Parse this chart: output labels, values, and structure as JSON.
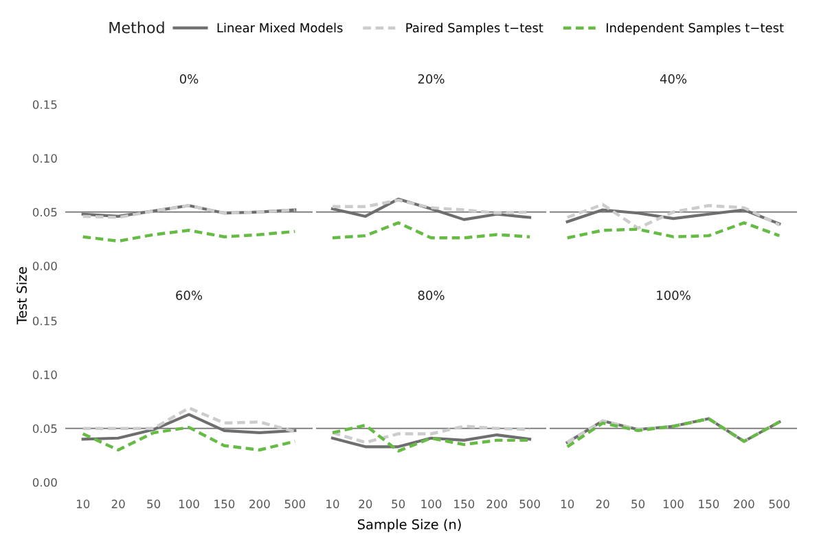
{
  "chart_data": [
    {
      "type": "line",
      "title": "0%",
      "ylabel": "Test Size",
      "legend_title": "Method",
      "legend": "top",
      "tick_labels": "y",
      "categories": [
        "10",
        "20",
        "50",
        "100",
        "150",
        "200",
        "500"
      ],
      "ylim": [
        0,
        0.15
      ],
      "yticks": [
        {
          "value": 0,
          "label": "0.00"
        },
        {
          "value": 0.05,
          "label": "0.05"
        },
        {
          "value": 0.1,
          "label": "0.10"
        },
        {
          "value": 0.15,
          "label": "0.15"
        }
      ],
      "ref_lines": [
        {
          "axis": "y",
          "value": 0.05,
          "color": "#707070"
        }
      ],
      "series": [
        {
          "name": "Linear Mixed Models",
          "color": "#6e6e6e",
          "line_style": "solid",
          "values": [
            0.048,
            0.046,
            0.051,
            0.056,
            0.049,
            0.05,
            0.052
          ]
        },
        {
          "name": "Paired Samples t−test",
          "color": "#cccccc",
          "line_style": "dashed",
          "values": [
            0.046,
            0.045,
            0.051,
            0.056,
            0.049,
            0.05,
            0.052
          ]
        },
        {
          "name": "Independent Samples t−test",
          "color": "#66bb44",
          "line_style": "dashed",
          "values": [
            0.027,
            0.023,
            0.029,
            0.033,
            0.027,
            0.029,
            0.032
          ]
        }
      ]
    },
    {
      "type": "line",
      "title": "20%",
      "tick_labels": false,
      "categories": [
        "10",
        "20",
        "50",
        "100",
        "150",
        "200",
        "500"
      ],
      "ylim": [
        0,
        0.15
      ],
      "ref_lines": [
        {
          "axis": "y",
          "value": 0.05,
          "color": "#707070"
        }
      ],
      "series": [
        {
          "color": "#6e6e6e",
          "line_style": "solid",
          "values": [
            0.053,
            0.046,
            0.062,
            0.053,
            0.043,
            0.048,
            0.045
          ]
        },
        {
          "color": "#cccccc",
          "line_style": "dashed",
          "values": [
            0.055,
            0.055,
            0.061,
            0.054,
            0.052,
            0.049,
            0.05
          ]
        },
        {
          "color": "#66bb44",
          "line_style": "dashed",
          "values": [
            0.026,
            0.028,
            0.04,
            0.026,
            0.026,
            0.029,
            0.027
          ]
        }
      ]
    },
    {
      "type": "line",
      "title": "40%",
      "tick_labels": false,
      "categories": [
        "10",
        "20",
        "50",
        "100",
        "150",
        "200",
        "500"
      ],
      "ylim": [
        0,
        0.15
      ],
      "ref_lines": [
        {
          "axis": "y",
          "value": 0.05,
          "color": "#707070"
        }
      ],
      "series": [
        {
          "color": "#6e6e6e",
          "line_style": "solid",
          "values": [
            0.041,
            0.052,
            0.049,
            0.044,
            0.048,
            0.052,
            0.039
          ]
        },
        {
          "color": "#cccccc",
          "line_style": "dashed",
          "values": [
            0.045,
            0.057,
            0.035,
            0.05,
            0.056,
            0.054,
            0.038
          ]
        },
        {
          "color": "#66bb44",
          "line_style": "dashed",
          "values": [
            0.026,
            0.033,
            0.034,
            0.027,
            0.028,
            0.04,
            0.028
          ]
        }
      ]
    },
    {
      "type": "line",
      "title": "60%",
      "categories": [
        "10",
        "20",
        "50",
        "100",
        "150",
        "200",
        "500"
      ],
      "ylim": [
        0,
        0.15
      ],
      "yticks": [
        {
          "value": 0,
          "label": "0.00"
        },
        {
          "value": 0.05,
          "label": "0.05"
        },
        {
          "value": 0.1,
          "label": "0.10"
        },
        {
          "value": 0.15,
          "label": "0.15"
        }
      ],
      "ref_lines": [
        {
          "axis": "y",
          "value": 0.05,
          "color": "#707070"
        }
      ],
      "series": [
        {
          "color": "#6e6e6e",
          "line_style": "solid",
          "values": [
            0.04,
            0.041,
            0.049,
            0.063,
            0.048,
            0.046,
            0.048
          ]
        },
        {
          "color": "#cccccc",
          "line_style": "dashed",
          "values": [
            0.05,
            0.05,
            0.05,
            0.069,
            0.055,
            0.056,
            0.047
          ]
        },
        {
          "color": "#66bb44",
          "line_style": "dashed",
          "values": [
            0.045,
            0.03,
            0.046,
            0.051,
            0.034,
            0.03,
            0.038
          ]
        }
      ]
    },
    {
      "type": "line",
      "title": "80%",
      "xlabel": "Sample Size (n)",
      "tick_labels": "x",
      "categories": [
        "10",
        "20",
        "50",
        "100",
        "150",
        "200",
        "500"
      ],
      "ylim": [
        0,
        0.15
      ],
      "ref_lines": [
        {
          "axis": "y",
          "value": 0.05,
          "color": "#707070"
        }
      ],
      "series": [
        {
          "color": "#6e6e6e",
          "line_style": "solid",
          "values": [
            0.041,
            0.033,
            0.033,
            0.041,
            0.039,
            0.044,
            0.04
          ]
        },
        {
          "color": "#cccccc",
          "line_style": "dashed",
          "values": [
            0.046,
            0.037,
            0.045,
            0.045,
            0.052,
            0.05,
            0.049
          ]
        },
        {
          "color": "#66bb44",
          "line_style": "dashed",
          "values": [
            0.046,
            0.053,
            0.029,
            0.041,
            0.035,
            0.039,
            0.039
          ]
        }
      ]
    },
    {
      "type": "line",
      "title": "100%",
      "tick_labels": "x",
      "categories": [
        "10",
        "20",
        "50",
        "100",
        "150",
        "200",
        "500"
      ],
      "ylim": [
        0,
        0.15
      ],
      "ref_lines": [
        {
          "axis": "y",
          "value": 0.05,
          "color": "#707070"
        }
      ],
      "series": [
        {
          "color": "#6e6e6e",
          "line_style": "solid",
          "values": [
            0.037,
            0.057,
            0.049,
            0.052,
            0.059,
            0.038,
            0.056
          ]
        },
        {
          "color": "#cccccc",
          "line_style": "dashed",
          "values": [
            0.037,
            0.057,
            0.049,
            0.052,
            0.059,
            0.038,
            0.056
          ]
        },
        {
          "color": "#66bb44",
          "line_style": "dashed",
          "values": [
            0.033,
            0.055,
            0.048,
            0.052,
            0.059,
            0.038,
            0.056
          ]
        }
      ]
    }
  ]
}
